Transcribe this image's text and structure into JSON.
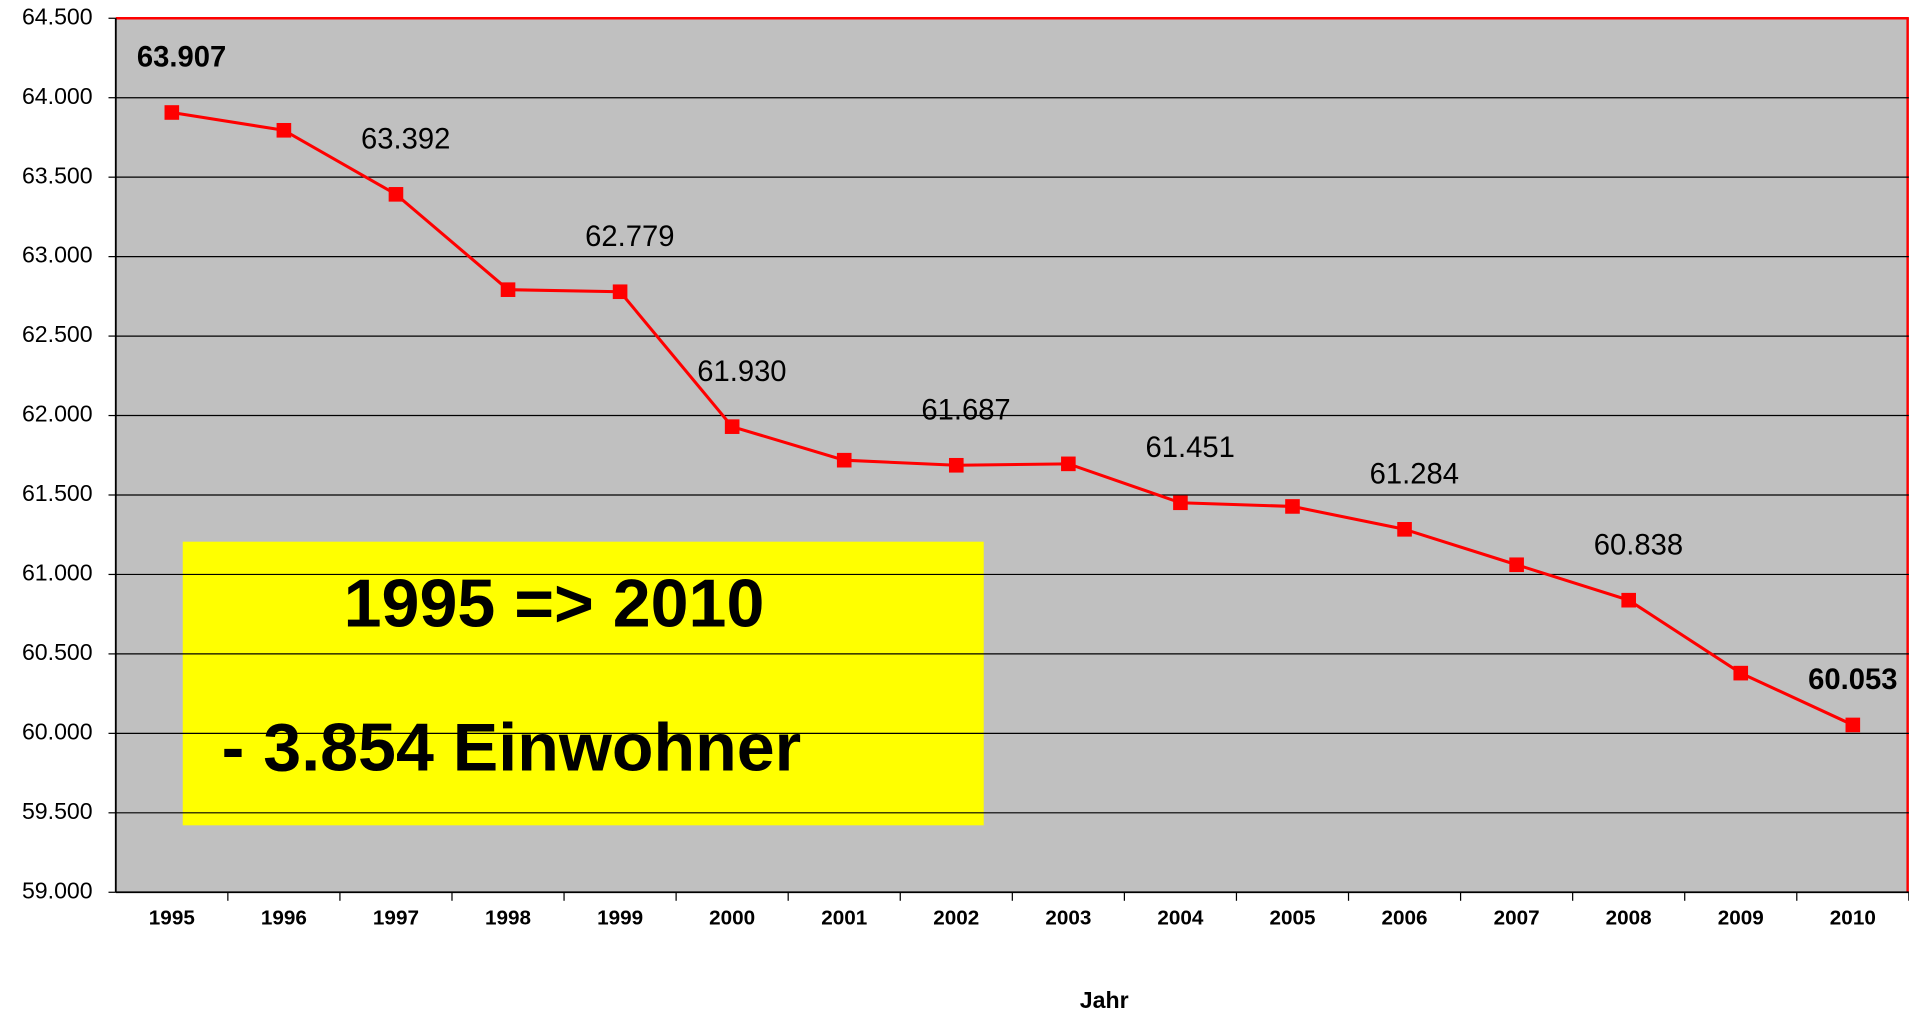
{
  "chart_data": {
    "type": "line",
    "x_label": "Jahr",
    "categories": [
      "1995",
      "1996",
      "1997",
      "1998",
      "1999",
      "2000",
      "2001",
      "2002",
      "2003",
      "2004",
      "2005",
      "2006",
      "2007",
      "2008",
      "2009",
      "2010"
    ],
    "series": [
      {
        "name": "Einwohner",
        "color": "#ff0000",
        "values": [
          63907,
          63795,
          63392,
          62792,
          62779,
          61930,
          61719,
          61687,
          61696,
          61451,
          61428,
          61284,
          61061,
          60838,
          60379,
          60053
        ],
        "value_labels": [
          "63.907",
          null,
          "63.392",
          null,
          "62.779",
          "61.930",
          null,
          "61.687",
          null,
          "61.451",
          null,
          "61.284",
          null,
          "60.838",
          null,
          "60.053"
        ]
      }
    ],
    "ylim": [
      59000,
      64500
    ],
    "yticks": [
      {
        "value": 59000,
        "label": "59.000"
      },
      {
        "value": 59500,
        "label": "59.500"
      },
      {
        "value": 60000,
        "label": "60.000"
      },
      {
        "value": 60500,
        "label": "60.500"
      },
      {
        "value": 61000,
        "label": "61.000"
      },
      {
        "value": 61500,
        "label": "61.500"
      },
      {
        "value": 62000,
        "label": "62.000"
      },
      {
        "value": 62500,
        "label": "62.500"
      },
      {
        "value": 63000,
        "label": "63.000"
      },
      {
        "value": 63500,
        "label": "63.500"
      },
      {
        "value": 64000,
        "label": "64.000"
      },
      {
        "value": 64500,
        "label": "64.500"
      }
    ],
    "grid": true,
    "background": "#c0c0c0",
    "annotations": [
      "1995 => 2010",
      "- 3.854 Einwohner"
    ]
  }
}
